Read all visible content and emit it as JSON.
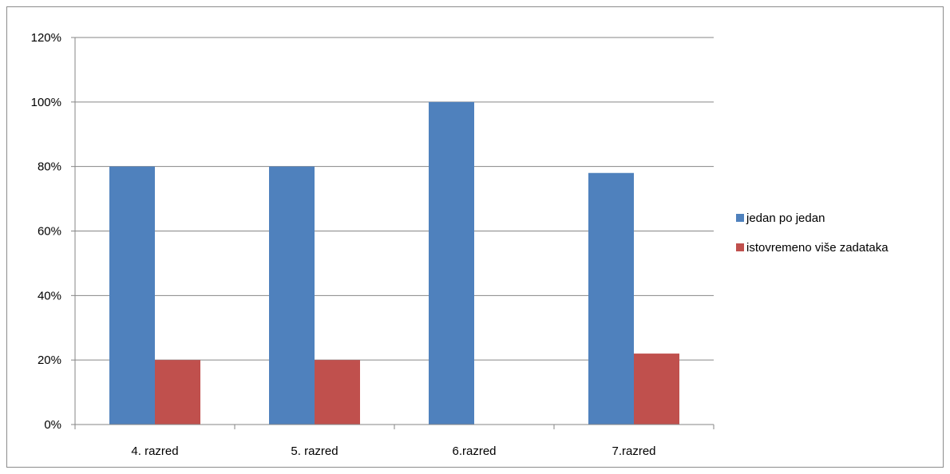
{
  "chart_data": {
    "type": "bar",
    "categories": [
      "4. razred",
      "5. razred",
      "6.razred",
      "7.razred"
    ],
    "series": [
      {
        "name": "jedan po jedan",
        "values": [
          0.8,
          0.8,
          1.0,
          0.78
        ],
        "color": "#4f81bd"
      },
      {
        "name": "istovremeno više zadataka",
        "values": [
          0.2,
          0.2,
          0.0,
          0.22
        ],
        "color": "#c0504d"
      }
    ],
    "y_ticks": [
      "0%",
      "20%",
      "40%",
      "60%",
      "80%",
      "100%",
      "120%"
    ],
    "ylim": [
      0,
      1.2
    ],
    "y_format": "percent",
    "grid": true,
    "legend_position": "right",
    "title": "",
    "xlabel": "",
    "ylabel": ""
  }
}
